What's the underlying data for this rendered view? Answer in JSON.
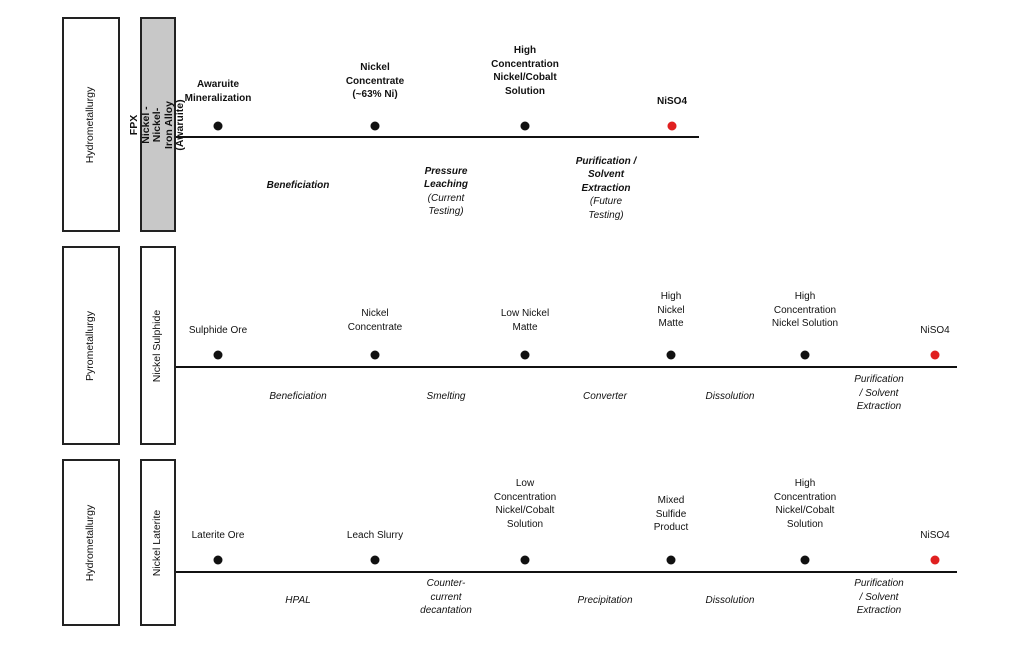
{
  "row1": {
    "side_label": "Hydrometallurgy",
    "product_label": "FPX Nickel - Nickel-Iron Alloy\n(Awaruite)",
    "nodes": [
      {
        "label": "Awaruite\nMineralization"
      },
      {
        "label": "Nickel\nConcentrate\n(~63% Ni)"
      },
      {
        "label": "High\nConcentration\nNickel/Cobalt\nSolution"
      },
      {
        "label": "NiSO4"
      }
    ],
    "steps": [
      {
        "text": "Beneficiation"
      },
      {
        "strong": "Pressure\nLeaching",
        "note": "(Current\nTesting)"
      },
      {
        "strong": "Purification /\nSolvent\nExtraction",
        "note": "(Future\nTesting)"
      }
    ]
  },
  "row2": {
    "side_label": "Pyrometallurgy",
    "product_label": "Nickel Sulphide",
    "nodes": [
      {
        "label": "Sulphide Ore"
      },
      {
        "label": "Nickel\nConcentrate"
      },
      {
        "label": "Low Nickel\nMatte"
      },
      {
        "label": "High\nNickel\nMatte"
      },
      {
        "label": "High\nConcentration\nNickel Solution"
      },
      {
        "label": "NiSO4"
      }
    ],
    "steps": [
      {
        "text": "Beneficiation"
      },
      {
        "text": "Smelting"
      },
      {
        "text": "Converter"
      },
      {
        "text": "Dissolution"
      },
      {
        "text": "Purification\n/ Solvent\nExtraction"
      }
    ]
  },
  "row3": {
    "side_label": "Hydrometallurgy",
    "product_label": "Nickel Laterite",
    "nodes": [
      {
        "label": "Laterite Ore"
      },
      {
        "label": "Leach Slurry"
      },
      {
        "label": "Low\nConcentration\nNickel/Cobalt\nSolution"
      },
      {
        "label": "Mixed\nSulfide\nProduct"
      },
      {
        "label": "High\nConcentration\nNickel/Cobalt\nSolution"
      },
      {
        "label": "NiSO4"
      }
    ],
    "steps": [
      {
        "text": "HPAL"
      },
      {
        "text": "Counter-\ncurrent\ndecantation"
      },
      {
        "text": "Precipitation"
      },
      {
        "text": "Dissolution"
      },
      {
        "text": "Purification\n/ Solvent\nExtraction"
      }
    ]
  },
  "colors": {
    "node": "#111111",
    "final_node": "#e02020",
    "product_box_awaruite": "#c8c8c8"
  }
}
